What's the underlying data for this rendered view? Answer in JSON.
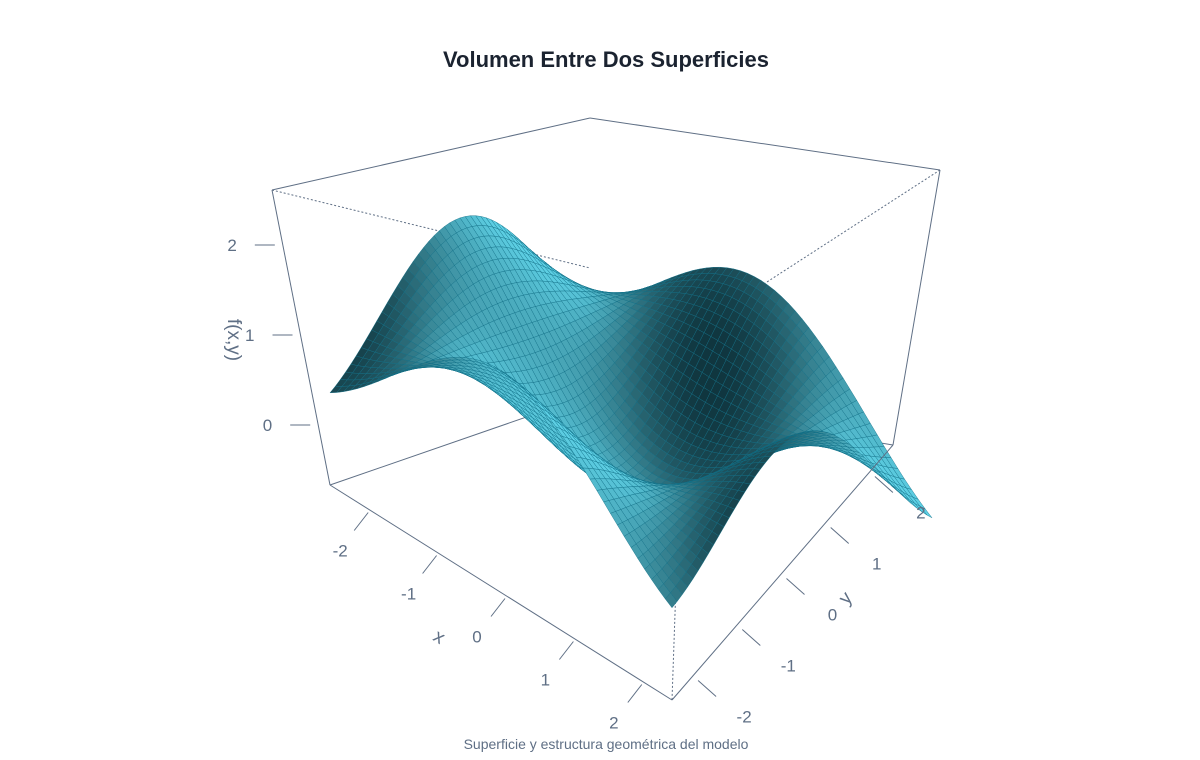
{
  "chart_data": {
    "type": "surface",
    "title": "Volumen Entre Dos Superficies",
    "caption": "Superficie y estructura geométrica del modelo",
    "xlabel": "x",
    "ylabel": "y",
    "zlabel": "f(x,y)",
    "xlim": [
      -2.5,
      2.5
    ],
    "ylim": [
      -2.5,
      2.5
    ],
    "zlim": [
      -0.4,
      2.4
    ],
    "x_ticks": [
      "-2",
      "-1",
      "0",
      "1",
      "2"
    ],
    "y_ticks": [
      "-2",
      "-1",
      "0",
      "1",
      "2"
    ],
    "z_ticks": [
      "0",
      "1",
      "2"
    ],
    "surface_function": "1 - cos(x)*cos(y)",
    "grid_resolution": 50,
    "colors": {
      "surface_light": "#5fd3e8",
      "surface_dark": "#10363f",
      "mesh": "#0f6f87",
      "box": "#5f6f85",
      "title": "#1b2330"
    }
  }
}
